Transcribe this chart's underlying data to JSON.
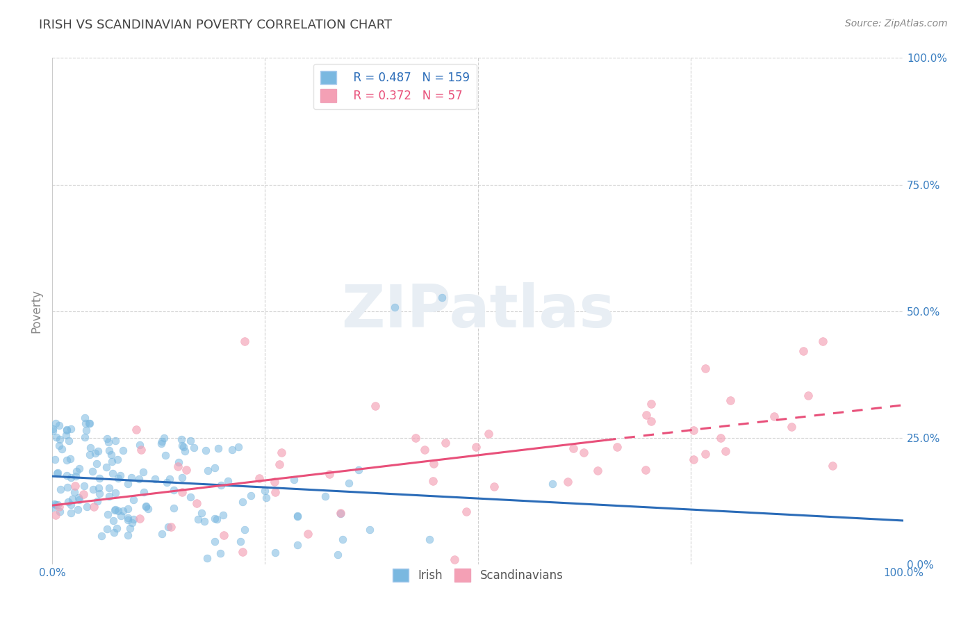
{
  "title": "IRISH VS SCANDINAVIAN POVERTY CORRELATION CHART",
  "source": "Source: ZipAtlas.com",
  "ylabel": "Poverty",
  "irish_R": 0.487,
  "irish_N": 159,
  "scand_R": 0.372,
  "scand_N": 57,
  "irish_color": "#7ab8e0",
  "scand_color": "#f4a0b5",
  "irish_line_color": "#2b6cb8",
  "scand_line_color": "#e8507a",
  "background": "#ffffff",
  "grid_color": "#d0d0d0",
  "title_color": "#444444",
  "axis_label_color": "#3a7fc1",
  "watermark_color": "#e8eef4",
  "dot_size": 60,
  "dot_alpha": 0.55,
  "line_width": 2.2
}
